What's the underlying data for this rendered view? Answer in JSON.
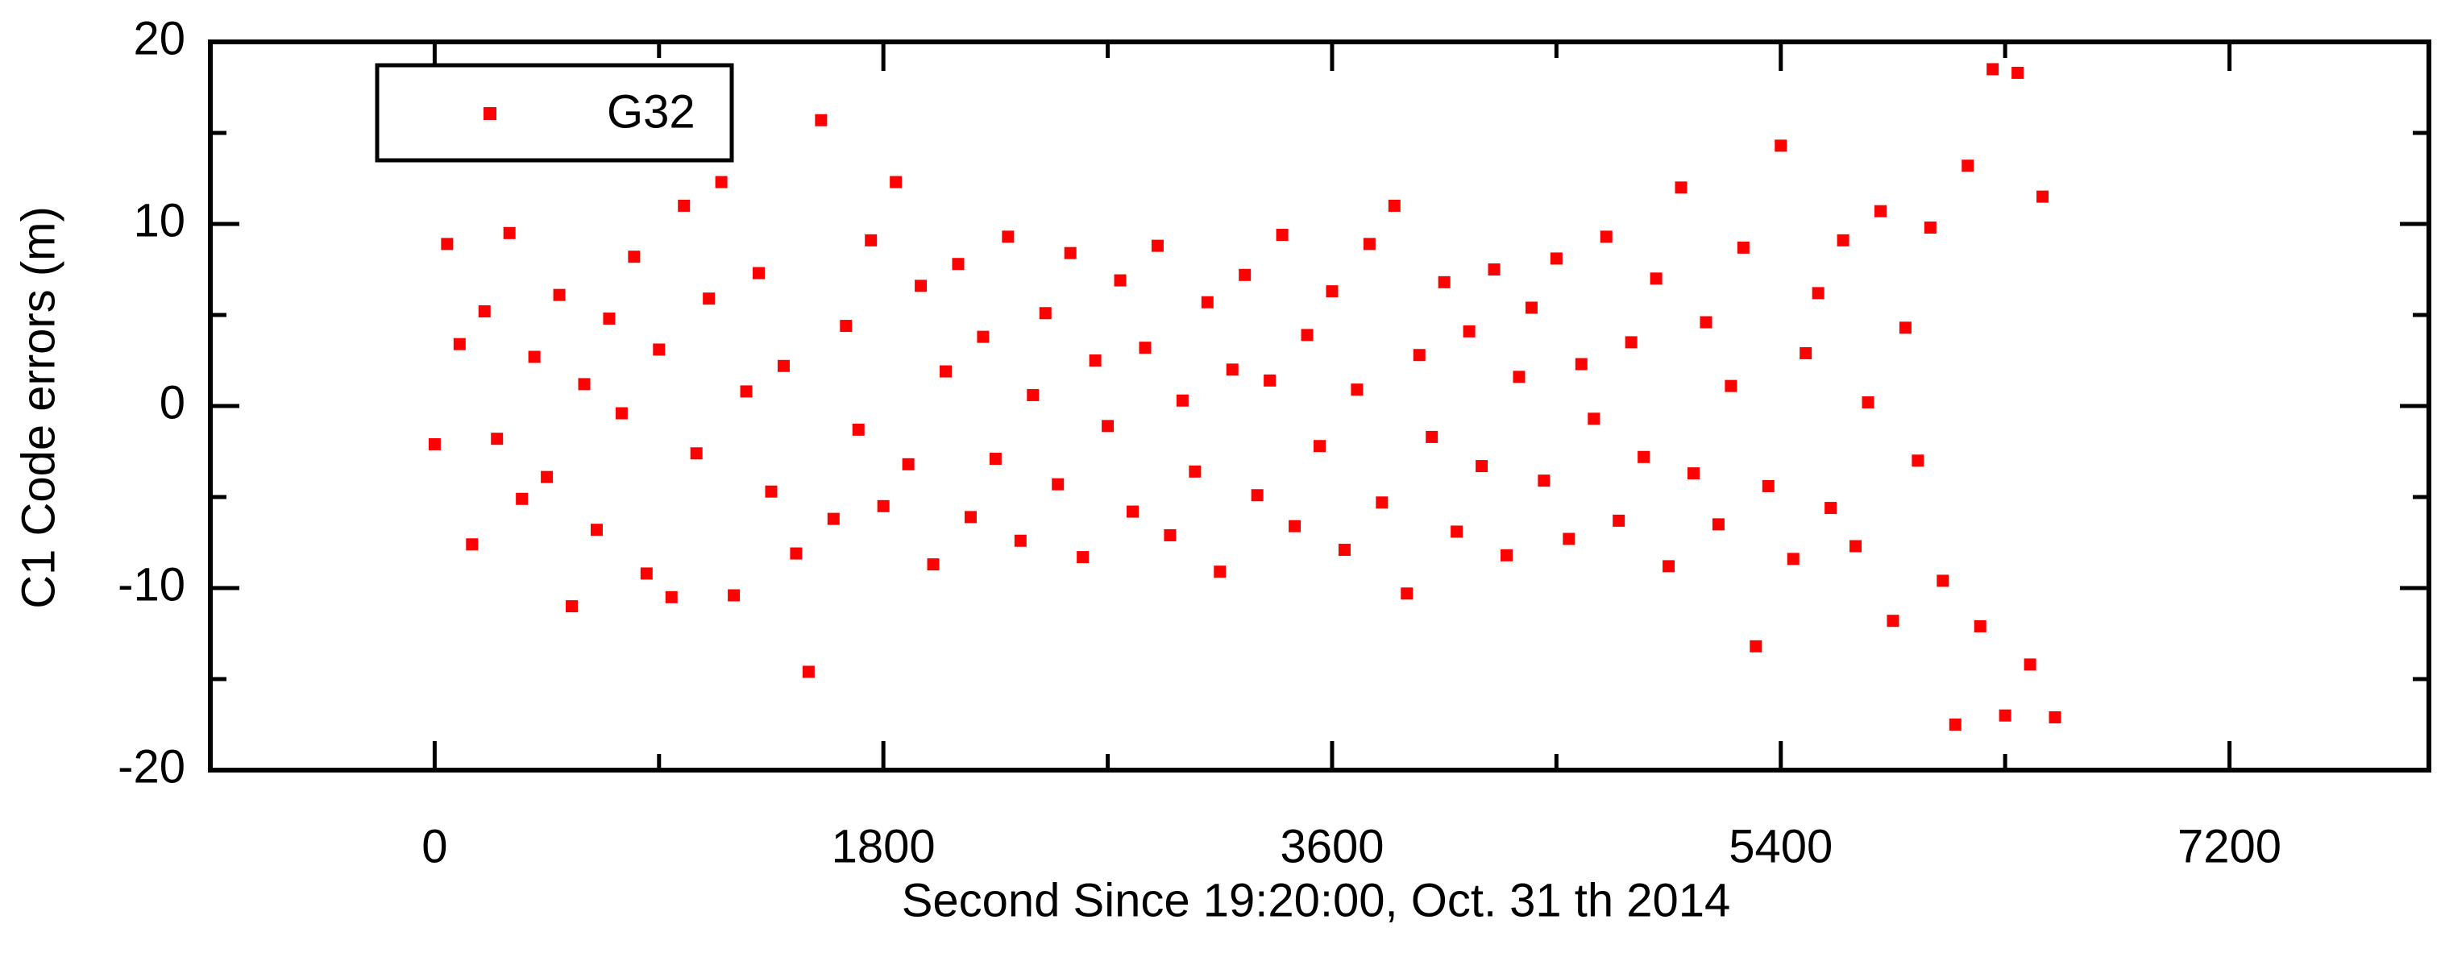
{
  "chart_data": {
    "type": "scatter",
    "x_label": "Second Since 19:20:00, Oct. 31 th 2014",
    "y_label": "C1 Code errors (m)",
    "x": [
      0,
      50,
      100,
      150,
      200,
      250,
      300,
      350,
      400,
      450,
      500,
      550,
      600,
      650,
      700,
      750,
      800,
      850,
      900,
      950,
      1000,
      1050,
      1100,
      1150,
      1200,
      1250,
      1300,
      1350,
      1400,
      1450,
      1500,
      1550,
      1600,
      1650,
      1700,
      1750,
      1800,
      1850,
      1900,
      1950,
      2000,
      2050,
      2100,
      2150,
      2200,
      2250,
      2300,
      2350,
      2400,
      2450,
      2500,
      2550,
      2600,
      2650,
      2700,
      2750,
      2800,
      2850,
      2900,
      2950,
      3000,
      3050,
      3100,
      3150,
      3200,
      3250,
      3300,
      3350,
      3400,
      3450,
      3500,
      3550,
      3600,
      3650,
      3700,
      3750,
      3800,
      3850,
      3900,
      3950,
      4000,
      4050,
      4100,
      4150,
      4200,
      4250,
      4300,
      4350,
      4400,
      4450,
      4500,
      4550,
      4600,
      4650,
      4700,
      4750,
      4800,
      4850,
      4900,
      4950,
      5000,
      5050,
      5100,
      5150,
      5200,
      5250,
      5300,
      5350,
      5400,
      5450,
      5500,
      5550,
      5600,
      5650,
      5700,
      5750,
      5800,
      5850,
      5900,
      5950,
      6000,
      6050,
      6100,
      6150,
      6200,
      6250,
      6300,
      6350,
      6400,
      6450,
      6500
    ],
    "series": [
      {
        "name": "G32",
        "color": "#ff0000",
        "values": [
          -2.1,
          8.9,
          3.4,
          -7.6,
          5.2,
          -1.8,
          9.5,
          -5.1,
          2.7,
          -3.9,
          6.1,
          -11,
          1.2,
          -6.8,
          4.8,
          -0.4,
          8.2,
          -9.2,
          3.1,
          -10.5,
          11,
          -2.6,
          5.9,
          12.3,
          -10.4,
          0.8,
          7.3,
          -4.7,
          2.2,
          -8.1,
          -14.6,
          15.7,
          -6.2,
          4.4,
          -1.3,
          9.1,
          -5.5,
          12.3,
          -3.2,
          6.6,
          -8.7,
          1.9,
          7.8,
          -6.1,
          3.8,
          -2.9,
          9.3,
          -7.4,
          0.6,
          5.1,
          -4.3,
          8.4,
          -8.3,
          2.5,
          -1.1,
          6.9,
          -5.8,
          3.2,
          8.8,
          -7.1,
          0.3,
          -3.6,
          5.7,
          -9.1,
          2.0,
          7.2,
          -4.9,
          1.4,
          9.4,
          -6.6,
          3.9,
          -2.2,
          6.3,
          -7.9,
          0.9,
          8.9,
          -5.3,
          11,
          -10.3,
          2.8,
          -1.7,
          6.8,
          -6.9,
          4.1,
          -3.3,
          7.5,
          -8.2,
          1.6,
          5.4,
          -4.1,
          8.1,
          -7.3,
          2.3,
          -0.7,
          9.3,
          -6.3,
          3.5,
          -2.8,
          7.0,
          -8.8,
          12,
          -3.7,
          4.6,
          -6.5,
          1.1,
          8.7,
          -13.2,
          -4.4,
          14.3,
          -8.4,
          2.9,
          6.2,
          -5.6,
          9.1,
          -7.7,
          0.2,
          10.7,
          -11.8,
          4.3,
          -3.0,
          9.8,
          -9.6,
          -17.5,
          13.2,
          -12.1,
          18.5,
          -17.0,
          18.3,
          -14.2,
          11.5,
          -17.1
        ]
      }
    ],
    "xlim": [
      -900,
      8000
    ],
    "xticks": [
      0,
      1800,
      3600,
      5400,
      7200
    ],
    "xticks_minor": [
      900,
      2700,
      4500,
      6300
    ],
    "ylim": [
      -20,
      20
    ],
    "yticks": [
      -20,
      -10,
      0,
      10,
      20
    ],
    "yticks_minor": [
      -15,
      -5,
      5,
      15
    ],
    "legend": "upper left"
  }
}
